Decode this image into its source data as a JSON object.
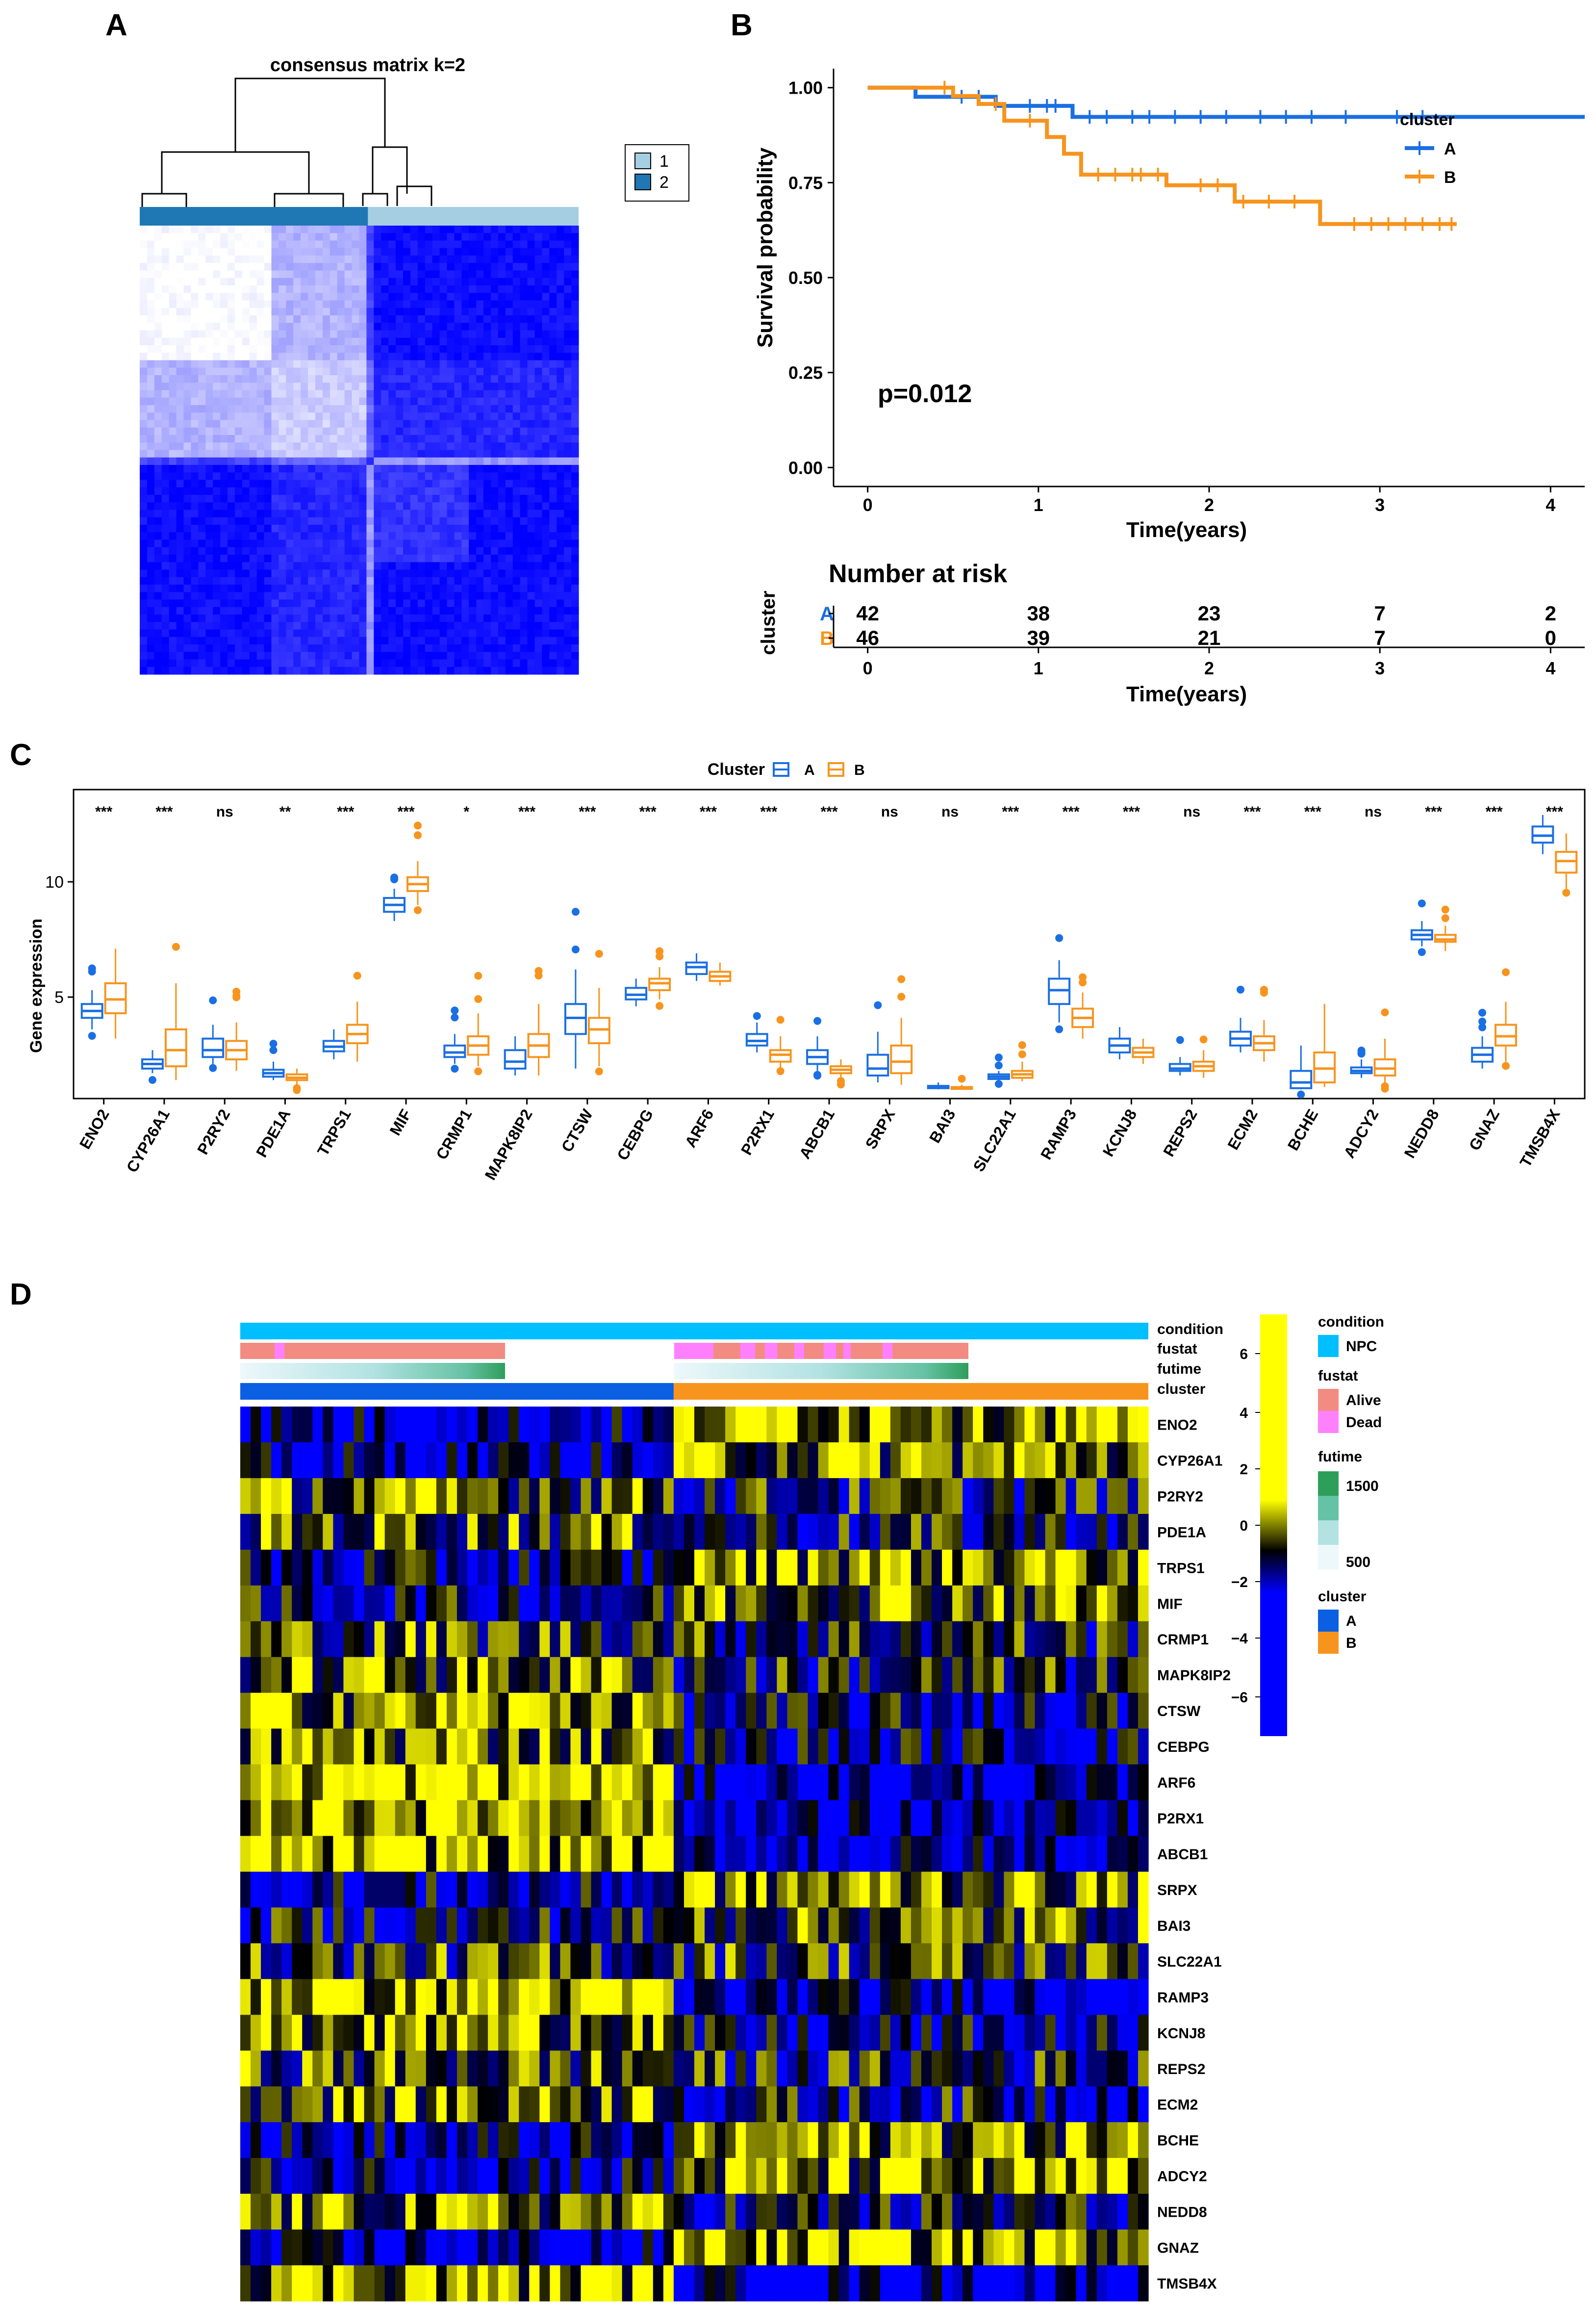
{
  "panels": {
    "a": "A",
    "b": "B",
    "c": "C",
    "d": "D"
  },
  "chart_data": [
    {
      "id": "A",
      "type": "heatmap",
      "title": "consensus matrix k=2",
      "legend": [
        "1",
        "2"
      ],
      "legend_colors": [
        "#a6cee3",
        "#1f78b4"
      ],
      "cluster_bar": [
        "2",
        "1"
      ],
      "block_boundaries": [
        0,
        0.3,
        0.52,
        0.54,
        0.75,
        1.0
      ],
      "block_values": [
        [
          0.0,
          0.3,
          0.75,
          0.95,
          0.95
        ],
        [
          0.3,
          0.2,
          0.6,
          0.85,
          0.85
        ],
        [
          0.75,
          0.6,
          0.85,
          0.4,
          0.4
        ],
        [
          0.95,
          0.85,
          0.4,
          0.8,
          0.95
        ],
        [
          0.95,
          0.85,
          0.4,
          0.95,
          0.95
        ]
      ],
      "color_scale": [
        "#ffffff",
        "#0000ff"
      ]
    },
    {
      "id": "B",
      "type": "line",
      "xlabel": "Time(years)",
      "ylabel": "Survival probability",
      "xlim": [
        -0.2,
        4.2
      ],
      "ylim": [
        -0.05,
        1.05
      ],
      "xticks": [
        "0",
        "1",
        "2",
        "3",
        "4"
      ],
      "yticks": [
        "0.00",
        "0.25",
        "0.50",
        "0.75",
        "1.00"
      ],
      "pvalue": "p=0.012",
      "legend_title": "cluster",
      "series": [
        {
          "name": "A",
          "color": "#1a6fe3",
          "x": [
            0,
            0.28,
            0.75,
            1.2,
            4.2
          ],
          "y": [
            1.0,
            0.976,
            0.952,
            0.923,
            0.923
          ],
          "censor_x": [
            0.55,
            0.65,
            0.95,
            1.05,
            1.1,
            1.3,
            1.4,
            1.55,
            1.65,
            1.8,
            1.95,
            2.1,
            2.3,
            2.45,
            2.6,
            2.8,
            3.1,
            3.25
          ]
        },
        {
          "name": "B",
          "color": "#f7941d",
          "x": [
            0,
            0.5,
            0.65,
            0.8,
            1.05,
            1.15,
            1.25,
            1.75,
            2.15,
            2.65,
            3.45
          ],
          "y": [
            1.0,
            0.978,
            0.957,
            0.913,
            0.87,
            0.826,
            0.771,
            0.743,
            0.7,
            0.641,
            0.641
          ],
          "censor_x": [
            0.45,
            0.75,
            0.95,
            1.35,
            1.45,
            1.55,
            1.6,
            1.7,
            1.95,
            2.05,
            2.2,
            2.35,
            2.5,
            2.85,
            2.95,
            3.05,
            3.15,
            3.25,
            3.35,
            3.42
          ]
        }
      ],
      "risk_table": {
        "title": "Number at risk",
        "ylabel": "cluster",
        "xlabel": "Time(years)",
        "times": [
          "0",
          "1",
          "2",
          "3",
          "4"
        ],
        "rows": [
          {
            "group": "A",
            "counts": [
              "42",
              "38",
              "23",
              "7",
              "2"
            ]
          },
          {
            "group": "B",
            "counts": [
              "46",
              "39",
              "21",
              "7",
              "0"
            ]
          }
        ]
      }
    },
    {
      "id": "C",
      "type": "boxplot",
      "legend_title": "Cluster",
      "legend": [
        "A",
        "B"
      ],
      "colors": {
        "A": "#1a6fe3",
        "B": "#f7941d"
      },
      "ylabel": "Gene expression",
      "ylim": [
        0.6,
        14
      ],
      "yticks": [
        "5",
        "10"
      ],
      "categories": [
        "ENO2",
        "CYP26A1",
        "P2RY2",
        "PDE1A",
        "TRPS1",
        "MIF",
        "CRMP1",
        "MAPK8IP2",
        "CTSW",
        "CEBPG",
        "ARF6",
        "P2RX1",
        "ABCB1",
        "SRPX",
        "BAI3",
        "SLC22A1",
        "RAMP3",
        "KCNJ8",
        "REPS2",
        "ECM2",
        "BCHE",
        "ADCY2",
        "NEDD8",
        "GNAZ",
        "TMSB4X"
      ],
      "significance": [
        "***",
        "***",
        "ns",
        "**",
        "***",
        "***",
        "*",
        "***",
        "***",
        "***",
        "***",
        "***",
        "***",
        "ns",
        "ns",
        "***",
        "***",
        "***",
        "ns",
        "***",
        "***",
        "ns",
        "***",
        "***",
        "***"
      ],
      "series": [
        {
          "name": "A",
          "boxes": [
            [
              3.6,
              4.1,
              4.4,
              4.7,
              5.3
            ],
            [
              1.7,
              1.9,
              2.1,
              2.3,
              2.7
            ],
            [
              2.1,
              2.4,
              2.7,
              3.2,
              3.8
            ],
            [
              1.4,
              1.55,
              1.7,
              1.85,
              2.2
            ],
            [
              2.3,
              2.65,
              2.85,
              3.1,
              3.6
            ],
            [
              8.3,
              8.7,
              9.0,
              9.3,
              9.7
            ],
            [
              2.1,
              2.4,
              2.6,
              2.9,
              3.4
            ],
            [
              1.6,
              1.9,
              2.2,
              2.7,
              3.3
            ],
            [
              1.9,
              3.4,
              4.1,
              4.7,
              6.2
            ],
            [
              4.6,
              4.9,
              5.1,
              5.4,
              5.8
            ],
            [
              5.7,
              6.0,
              6.3,
              6.5,
              6.9
            ],
            [
              2.6,
              2.9,
              3.1,
              3.4,
              3.9
            ],
            [
              1.8,
              2.1,
              2.4,
              2.7,
              3.3
            ],
            [
              1.3,
              1.6,
              1.9,
              2.5,
              3.5
            ],
            [
              1.0,
              1.05,
              1.1,
              1.15,
              1.3
            ],
            [
              1.35,
              1.45,
              1.55,
              1.65,
              1.8
            ],
            [
              3.9,
              4.7,
              5.3,
              5.8,
              6.6
            ],
            [
              2.3,
              2.6,
              2.9,
              3.2,
              3.7
            ],
            [
              1.6,
              1.8,
              1.9,
              2.1,
              2.4
            ],
            [
              2.6,
              2.9,
              3.2,
              3.5,
              4.1
            ],
            [
              1.0,
              1.05,
              1.3,
              1.8,
              2.9
            ],
            [
              1.5,
              1.7,
              1.8,
              1.95,
              2.3
            ],
            [
              7.2,
              7.5,
              7.7,
              7.9,
              8.3
            ],
            [
              1.9,
              2.2,
              2.5,
              2.8,
              3.3
            ],
            [
              11.2,
              11.7,
              12.0,
              12.4,
              12.9
            ]
          ]
        },
        {
          "name": "B",
          "boxes": [
            [
              3.2,
              4.3,
              4.9,
              5.6,
              7.1
            ],
            [
              1.4,
              2.0,
              2.7,
              3.6,
              5.6
            ],
            [
              1.8,
              2.3,
              2.7,
              3.1,
              3.9
            ],
            [
              1.2,
              1.4,
              1.5,
              1.65,
              1.9
            ],
            [
              2.2,
              3.0,
              3.4,
              3.8,
              4.8
            ],
            [
              9.0,
              9.6,
              9.9,
              10.2,
              10.9
            ],
            [
              2.0,
              2.5,
              2.9,
              3.3,
              4.3
            ],
            [
              1.6,
              2.4,
              2.9,
              3.4,
              4.7
            ],
            [
              2.0,
              3.0,
              3.6,
              4.1,
              5.4
            ],
            [
              4.9,
              5.3,
              5.6,
              5.8,
              6.3
            ],
            [
              5.5,
              5.7,
              5.9,
              6.1,
              6.5
            ],
            [
              1.9,
              2.2,
              2.5,
              2.7,
              3.3
            ],
            [
              1.5,
              1.7,
              1.85,
              2.0,
              2.3
            ],
            [
              1.2,
              1.7,
              2.2,
              2.9,
              4.1
            ],
            [
              1.0,
              1.02,
              1.05,
              1.1,
              1.2
            ],
            [
              1.35,
              1.5,
              1.65,
              1.8,
              2.2
            ],
            [
              3.2,
              3.7,
              4.1,
              4.5,
              5.2
            ],
            [
              2.1,
              2.4,
              2.6,
              2.8,
              3.2
            ],
            [
              1.5,
              1.8,
              2.0,
              2.2,
              2.7
            ],
            [
              2.2,
              2.7,
              3.0,
              3.3,
              4.0
            ],
            [
              1.1,
              1.3,
              1.9,
              2.6,
              4.7
            ],
            [
              1.3,
              1.6,
              1.9,
              2.3,
              3.2
            ],
            [
              7.0,
              7.4,
              7.5,
              7.7,
              8.1
            ],
            [
              2.2,
              2.9,
              3.3,
              3.8,
              4.8
            ],
            [
              9.7,
              10.4,
              10.9,
              11.3,
              12.1
            ]
          ]
        }
      ]
    },
    {
      "id": "D",
      "type": "heatmap",
      "annotation_tracks": [
        "condition",
        "fustat",
        "futime",
        "cluster"
      ],
      "rows": [
        "ENO2",
        "CYP26A1",
        "P2RY2",
        "PDE1A",
        "TRPS1",
        "MIF",
        "CRMP1",
        "MAPK8IP2",
        "CTSW",
        "CEBPG",
        "ARF6",
        "P2RX1",
        "ABCB1",
        "SRPX",
        "BAI3",
        "SLC22A1",
        "RAMP3",
        "KCNJ8",
        "REPS2",
        "ECM2",
        "BCHE",
        "ADCY2",
        "NEDD8",
        "GNAZ",
        "TMSB4X"
      ],
      "samples_cluster_A": 42,
      "samples_cluster_B": 46,
      "row_bias_A": [
        -0.8,
        -0.9,
        0.4,
        0.3,
        -0.6,
        -0.5,
        0.2,
        0.5,
        0.8,
        0.6,
        1.2,
        1.1,
        1.0,
        -0.7,
        -0.4,
        0.0,
        1.0,
        0.7,
        0.2,
        0.6,
        -0.8,
        -0.6,
        0.5,
        -1.0,
        0.9
      ],
      "row_bias_B": [
        1.0,
        0.6,
        -0.2,
        -0.3,
        0.8,
        0.6,
        -0.1,
        -0.2,
        -0.6,
        -0.6,
        -1.1,
        -1.0,
        -0.9,
        0.6,
        0.3,
        0.1,
        -0.9,
        -0.7,
        -0.2,
        -0.4,
        0.7,
        0.5,
        -0.4,
        0.9,
        -1.0
      ],
      "color_scale": {
        "ticks": [
          "6",
          "4",
          "2",
          "0",
          "−2",
          "−4",
          "−6"
        ],
        "colors": [
          "#0000ff",
          "#000000",
          "#ffff00"
        ]
      },
      "legend": {
        "condition": {
          "title": "condition",
          "items": [
            {
              "label": "NPC",
              "color": "#00bfff"
            }
          ]
        },
        "fustat": {
          "title": "fustat",
          "items": [
            {
              "label": "Alive",
              "color": "#f28b82"
            },
            {
              "label": "Dead",
              "color": "#ff80ff"
            }
          ]
        },
        "futime": {
          "title": "futime",
          "labels": [
            "1500",
            "500"
          ],
          "colors": [
            "#2e9e5b",
            "#66c2a4",
            "#b2e2e2",
            "#edf8fb"
          ]
        },
        "cluster": {
          "title": "cluster",
          "items": [
            {
              "label": "A",
              "color": "#0b5fe3"
            },
            {
              "label": "B",
              "color": "#f7941d"
            }
          ]
        }
      }
    }
  ]
}
